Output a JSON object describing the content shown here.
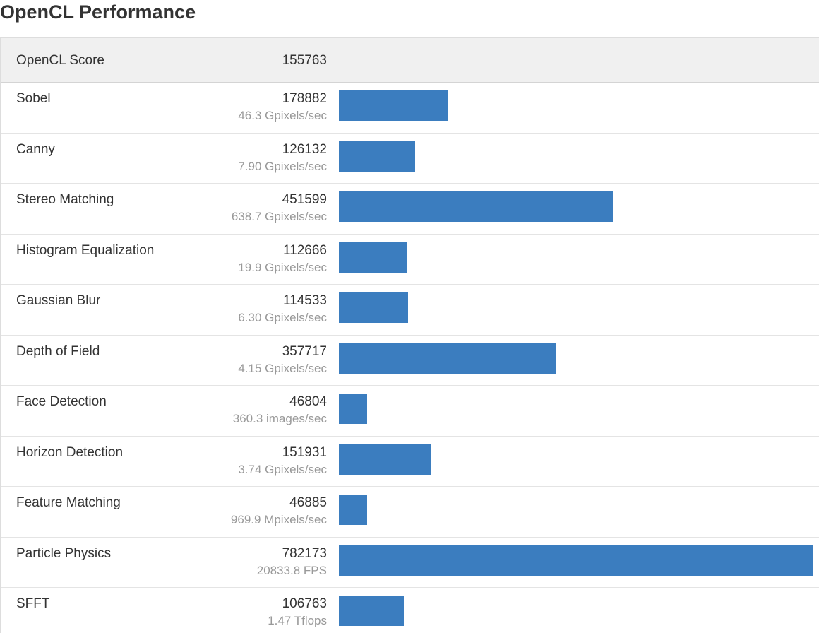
{
  "title": "OpenCL Performance",
  "score_row": {
    "label": "OpenCL Score",
    "value": "155763"
  },
  "colors": {
    "bar": "#3b7dbf",
    "header_bg": "#f0f0f0",
    "secondary_text": "#999999"
  },
  "max_score": 782173,
  "benchmarks": [
    {
      "name": "Sobel",
      "score": "178882",
      "rate": "46.3 Gpixels/sec"
    },
    {
      "name": "Canny",
      "score": "126132",
      "rate": "7.90 Gpixels/sec"
    },
    {
      "name": "Stereo Matching",
      "score": "451599",
      "rate": "638.7 Gpixels/sec"
    },
    {
      "name": "Histogram Equalization",
      "score": "112666",
      "rate": "19.9 Gpixels/sec"
    },
    {
      "name": "Gaussian Blur",
      "score": "114533",
      "rate": "6.30 Gpixels/sec"
    },
    {
      "name": "Depth of Field",
      "score": "357717",
      "rate": "4.15 Gpixels/sec"
    },
    {
      "name": "Face Detection",
      "score": "46804",
      "rate": "360.3 images/sec"
    },
    {
      "name": "Horizon Detection",
      "score": "151931",
      "rate": "3.74 Gpixels/sec"
    },
    {
      "name": "Feature Matching",
      "score": "46885",
      "rate": "969.9 Mpixels/sec"
    },
    {
      "name": "Particle Physics",
      "score": "782173",
      "rate": "20833.8 FPS"
    },
    {
      "name": "SFFT",
      "score": "106763",
      "rate": "1.47 Tflops"
    }
  ]
}
